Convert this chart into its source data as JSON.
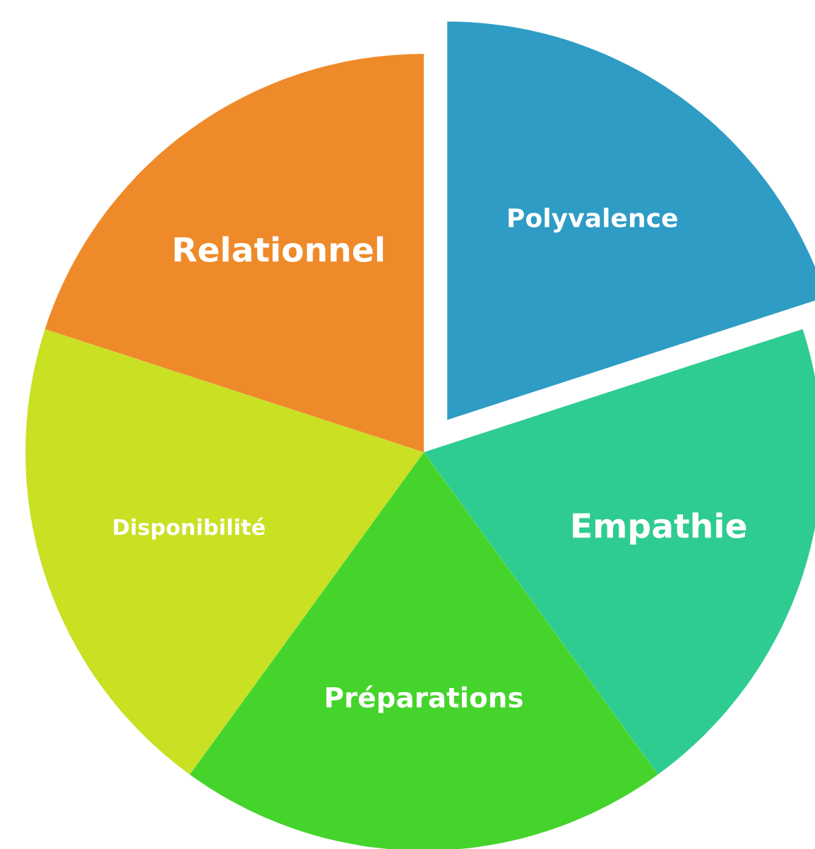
{
  "chart_data": {
    "type": "pie",
    "categories": [
      "Polyvalence",
      "Empathie",
      "Préparations",
      "Disponibilité",
      "Relationnel"
    ],
    "values": [
      20,
      20,
      20,
      20,
      20
    ],
    "colors": [
      "#2e9cc4",
      "#2fcc92",
      "#45d42c",
      "#c9e023",
      "#ef8a2a"
    ],
    "legend": false
  }
}
